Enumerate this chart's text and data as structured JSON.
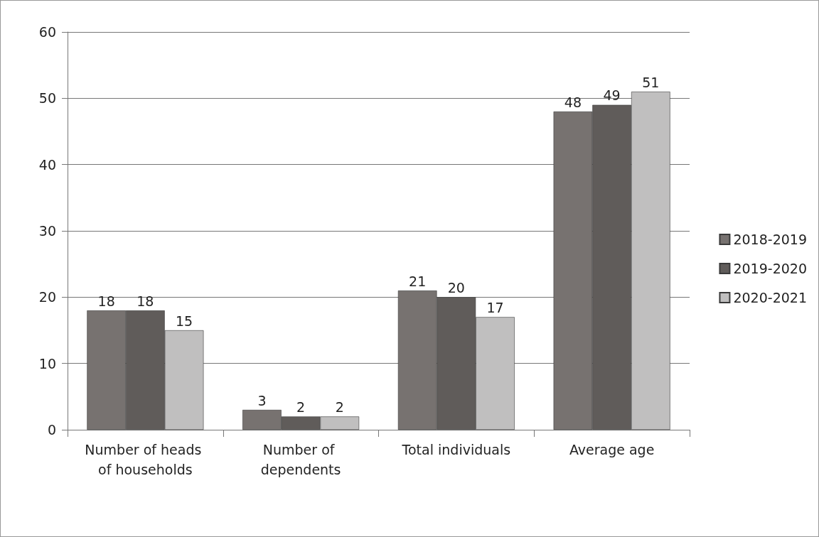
{
  "chart_data": {
    "type": "bar",
    "categories": [
      "Number of heads of households",
      "Number of dependents",
      "Total individuals",
      "Average age"
    ],
    "series": [
      {
        "name": "2018-2019",
        "color": "#777270",
        "values": [
          18,
          3,
          21,
          48
        ]
      },
      {
        "name": "2019-2020",
        "color": "#605c5a",
        "values": [
          18,
          2,
          20,
          49
        ]
      },
      {
        "name": "2020-2021",
        "color": "#c0bfbf",
        "values": [
          15,
          2,
          17,
          51
        ]
      }
    ],
    "ylim": [
      0,
      60
    ],
    "yticks": [
      0,
      10,
      20,
      30,
      40,
      50,
      60
    ],
    "grid": "y",
    "legend": "right",
    "data_labels": true
  }
}
